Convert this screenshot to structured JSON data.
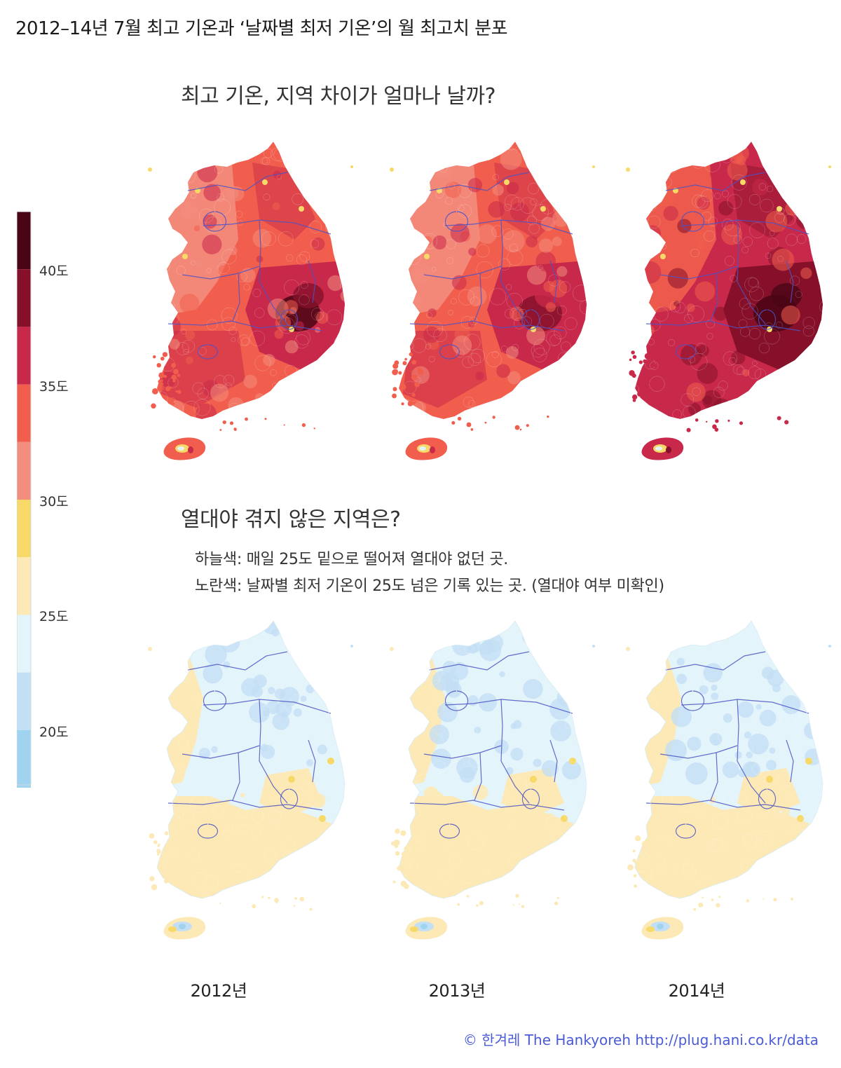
{
  "title": "2012–14년 7월 최고 기온과 ‘날짜별 최저 기온’의 월 최고치 분포",
  "section_max": {
    "title": "최고 기온, 지역 차이가 얼마나 날까?"
  },
  "section_night": {
    "title": "열대야 겪지 않은 지역은?",
    "note_sky": "하늘색: 매일 25도 밑으로 떨어져 열대야 없던 곳.",
    "note_yellow": "노란색: 날짜별 최저 기온이 25도 넘은 기록 있는 곳. (열대야 여부 미확인)"
  },
  "years": [
    "2012년",
    "2013년",
    "2014년"
  ],
  "legend": {
    "ticks": [
      "40도",
      "35도",
      "30도",
      "25도",
      "20도"
    ],
    "bins": [
      {
        "range": [
          40,
          42.5
        ],
        "color": "#4a0515"
      },
      {
        "range": [
          37.5,
          40
        ],
        "color": "#86102a"
      },
      {
        "range": [
          35,
          37.5
        ],
        "color": "#c8284a"
      },
      {
        "range": [
          32.5,
          35
        ],
        "color": "#f15e4d"
      },
      {
        "range": [
          30,
          32.5
        ],
        "color": "#f38d7e"
      },
      {
        "range": [
          27.5,
          30
        ],
        "color": "#f7d968"
      },
      {
        "range": [
          25,
          27.5
        ],
        "color": "#fce9b5"
      },
      {
        "range": [
          22.5,
          25
        ],
        "color": "#e3f4fb"
      },
      {
        "range": [
          20,
          22.5
        ],
        "color": "#c3dff5"
      },
      {
        "range": [
          17.5,
          20
        ],
        "color": "#a0d3ef"
      }
    ]
  },
  "border_color": "#4c53c4",
  "credit": {
    "symbol": "©",
    "org_korean": "한겨레",
    "org_english": "The Hankyoreh",
    "url": "http://plug.hani.co.kr/data",
    "color": "#4a5bd6"
  },
  "maps": {
    "max_temp": {
      "2012": {
        "base": "#f15e4d",
        "light": "#f38d7e",
        "dark": "#c8284a",
        "darkest": "#86102a",
        "hot": "#4a0515",
        "south": "#c8284a"
      },
      "2013": {
        "base": "#f15e4d",
        "light": "#f38d7e",
        "dark": "#c8284a",
        "darkest": "#c8284a",
        "hot": "#86102a",
        "south": "#c8284a"
      },
      "2014": {
        "base": "#c8284a",
        "light": "#f15e4d",
        "dark": "#86102a",
        "darkest": "#4a0515",
        "hot": "#4a0515",
        "south": "#c8284a"
      }
    },
    "min_temp": {
      "2012": {
        "north": "#e3f4fb",
        "west": "#fce9b5",
        "south": "#fce9b5",
        "patch": "#c3dff5",
        "accent": "#f7d968"
      },
      "2013": {
        "north": "#e3f4fb",
        "west": "#fce9b5",
        "south": "#fce9b5",
        "patch": "#c3dff5",
        "accent": "#f7d968"
      },
      "2014": {
        "north": "#e3f4fb",
        "west": "#fce9b5",
        "south": "#fce9b5",
        "patch": "#c3dff5",
        "accent": "#f7d968"
      }
    }
  }
}
